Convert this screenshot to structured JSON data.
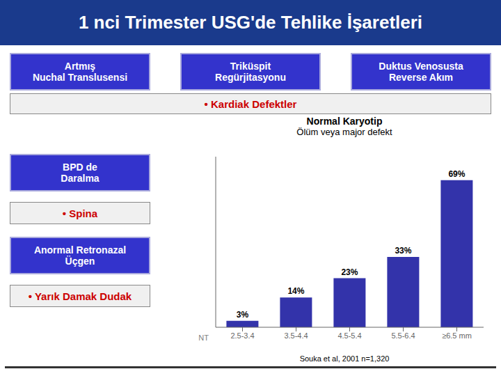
{
  "chart_data": {
    "type": "bar",
    "title": "Normal Karyotip",
    "subtitle": "Ölüm veya major defekt",
    "x_label": "NT",
    "categories": [
      "2.5-3.4",
      "3.5-4.4",
      "4.5-5.4",
      "5.5-6.4",
      "≥6.5 mm"
    ],
    "values": [
      3,
      14,
      23,
      33,
      69
    ],
    "value_labels": [
      "3%",
      "14%",
      "23%",
      "33%",
      "69%"
    ],
    "data_labels": true,
    "color": "#3333aa",
    "ylim": [
      0,
      80
    ],
    "tick_labels": "x",
    "grid": false,
    "annotations": [
      "1 nci Trimester USG'de Tehlike İşaretleri",
      "Artmış\nNuchal Translusensi",
      "Triküspit\nRegürjitasyonu",
      "Duktus Venosusta\nReverse Akım",
      "• Kardiak Defektler",
      "BPD de\nDaralma",
      "• Spina",
      "Anormal Retronazal\nÜçgen",
      "• Yarık Damak Dudak",
      "Souka et al, 2001   n=1,320"
    ]
  }
}
